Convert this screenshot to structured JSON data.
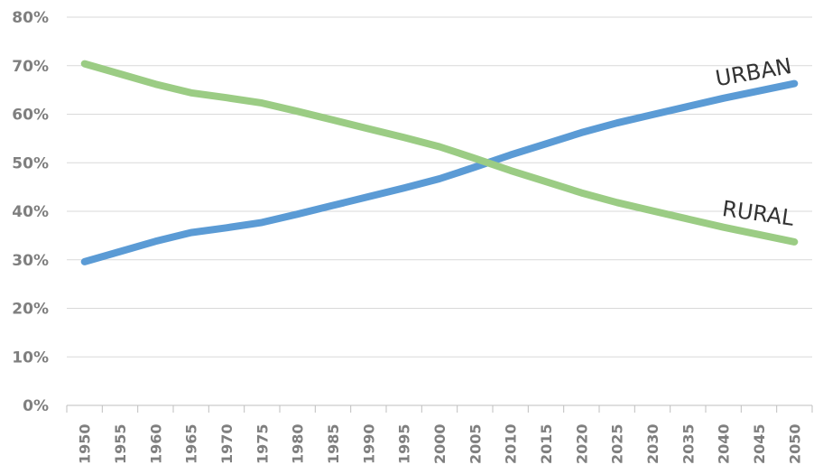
{
  "chart_data": {
    "type": "line",
    "title": "",
    "xlabel": "",
    "ylabel": "",
    "x": [
      "1950",
      "1955",
      "1960",
      "1965",
      "1970",
      "1975",
      "1980",
      "1985",
      "1990",
      "1995",
      "2000",
      "2005",
      "2010",
      "2015",
      "2020",
      "2025",
      "2030",
      "2035",
      "2040",
      "2045",
      "2050"
    ],
    "ylim": [
      0,
      80
    ],
    "yticks": [
      "0%",
      "10%",
      "20%",
      "30%",
      "40%",
      "50%",
      "60%",
      "70%",
      "80%"
    ],
    "grid": true,
    "legend": "none",
    "series": [
      {
        "name": "URBAN",
        "color": "#5b9bd5",
        "values": [
          29.6,
          31.7,
          33.8,
          35.6,
          36.6,
          37.7,
          39.4,
          41.2,
          43.0,
          44.8,
          46.7,
          49.1,
          51.6,
          53.9,
          56.2,
          58.2,
          59.9,
          61.6,
          63.3,
          64.8,
          66.3
        ]
      },
      {
        "name": "RURAL",
        "color": "#9bcc84",
        "values": [
          70.4,
          68.3,
          66.2,
          64.4,
          63.4,
          62.3,
          60.6,
          58.8,
          57.0,
          55.2,
          53.3,
          50.9,
          48.4,
          46.1,
          43.8,
          41.8,
          40.1,
          38.4,
          36.7,
          35.2,
          33.7
        ]
      }
    ]
  }
}
